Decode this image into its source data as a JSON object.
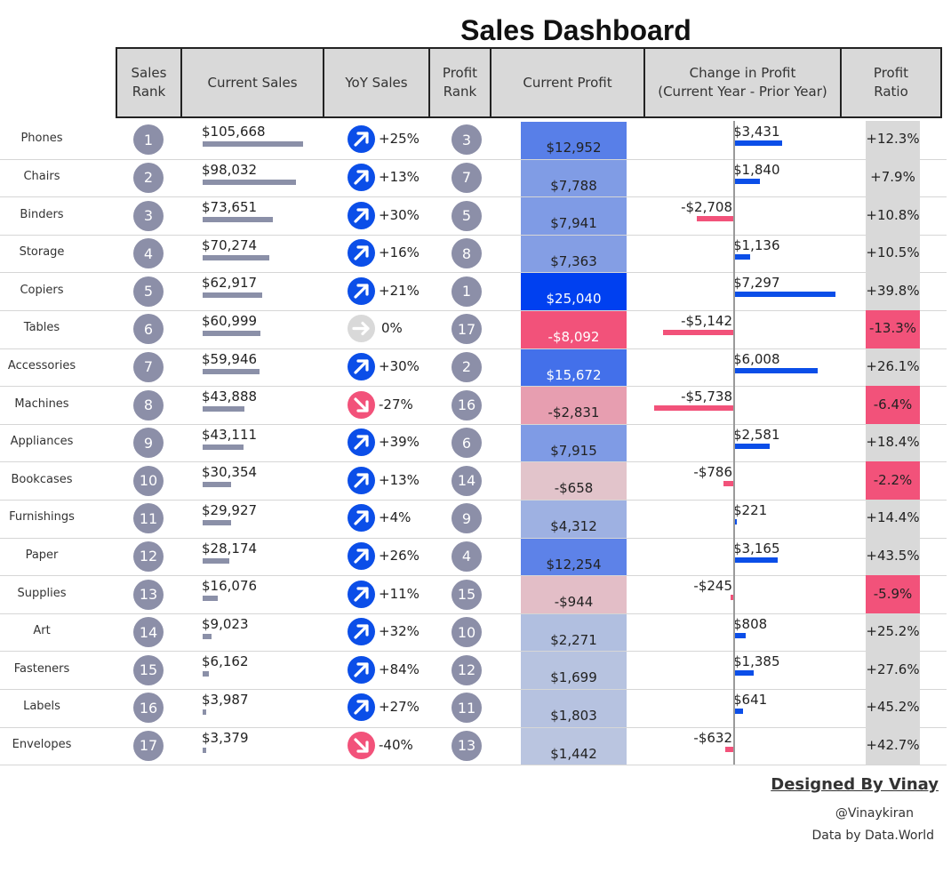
{
  "header": {
    "title": "Sales Dashboard",
    "columns": [
      {
        "label": "Sales\nRank"
      },
      {
        "label": "Current Sales"
      },
      {
        "label": "YoY Sales"
      },
      {
        "label": "Profit\nRank"
      },
      {
        "label": "Current Profit"
      },
      {
        "label": "Change in Profit\n(Current Year - Prior Year)"
      },
      {
        "label": "Profit\nRatio"
      }
    ]
  },
  "colors": {
    "positive_bar": "#0b4ee8",
    "negative_bar": "#f2527a",
    "rank_circle": "#8c8fa8",
    "sales_bar": "#8b90a8",
    "header_bg": "#d9d9d9",
    "ratio_bg": "#d9d9d9",
    "ratio_negative_bg": "#f2527a"
  },
  "chart_data": {
    "type": "table",
    "rows": [
      {
        "category": "Phones",
        "sales_rank": 1,
        "current_sales": 105668,
        "current_sales_label": "$105,668",
        "yoy_pct": 25,
        "yoy_label": "+25%",
        "profit_rank": 3,
        "current_profit": 12952,
        "current_profit_label": "$12,952",
        "change_in_profit": 3431,
        "change_in_profit_label": "$3,431",
        "profit_ratio_pct": 12.3,
        "profit_ratio_label": "+12.3%"
      },
      {
        "category": "Chairs",
        "sales_rank": 2,
        "current_sales": 98032,
        "current_sales_label": "$98,032",
        "yoy_pct": 13,
        "yoy_label": "+13%",
        "profit_rank": 7,
        "current_profit": 7788,
        "current_profit_label": "$7,788",
        "change_in_profit": 1840,
        "change_in_profit_label": "$1,840",
        "profit_ratio_pct": 7.9,
        "profit_ratio_label": "+7.9%"
      },
      {
        "category": "Binders",
        "sales_rank": 3,
        "current_sales": 73651,
        "current_sales_label": "$73,651",
        "yoy_pct": 30,
        "yoy_label": "+30%",
        "profit_rank": 5,
        "current_profit": 7941,
        "current_profit_label": "$7,941",
        "change_in_profit": -2708,
        "change_in_profit_label": "-$2,708",
        "profit_ratio_pct": 10.8,
        "profit_ratio_label": "+10.8%"
      },
      {
        "category": "Storage",
        "sales_rank": 4,
        "current_sales": 70274,
        "current_sales_label": "$70,274",
        "yoy_pct": 16,
        "yoy_label": "+16%",
        "profit_rank": 8,
        "current_profit": 7363,
        "current_profit_label": "$7,363",
        "change_in_profit": 1136,
        "change_in_profit_label": "$1,136",
        "profit_ratio_pct": 10.5,
        "profit_ratio_label": "+10.5%"
      },
      {
        "category": "Copiers",
        "sales_rank": 5,
        "current_sales": 62917,
        "current_sales_label": "$62,917",
        "yoy_pct": 21,
        "yoy_label": "+21%",
        "profit_rank": 1,
        "current_profit": 25040,
        "current_profit_label": "$25,040",
        "change_in_profit": 7297,
        "change_in_profit_label": "$7,297",
        "profit_ratio_pct": 39.8,
        "profit_ratio_label": "+39.8%"
      },
      {
        "category": "Tables",
        "sales_rank": 6,
        "current_sales": 60999,
        "current_sales_label": "$60,999",
        "yoy_pct": 0,
        "yoy_label": "0%",
        "profit_rank": 17,
        "current_profit": -8092,
        "current_profit_label": "-$8,092",
        "change_in_profit": -5142,
        "change_in_profit_label": "-$5,142",
        "profit_ratio_pct": -13.3,
        "profit_ratio_label": "-13.3%"
      },
      {
        "category": "Accessories",
        "sales_rank": 7,
        "current_sales": 59946,
        "current_sales_label": "$59,946",
        "yoy_pct": 30,
        "yoy_label": "+30%",
        "profit_rank": 2,
        "current_profit": 15672,
        "current_profit_label": "$15,672",
        "change_in_profit": 6008,
        "change_in_profit_label": "$6,008",
        "profit_ratio_pct": 26.1,
        "profit_ratio_label": "+26.1%"
      },
      {
        "category": "Machines",
        "sales_rank": 8,
        "current_sales": 43888,
        "current_sales_label": "$43,888",
        "yoy_pct": -27,
        "yoy_label": "-27%",
        "profit_rank": 16,
        "current_profit": -2831,
        "current_profit_label": "-$2,831",
        "change_in_profit": -5738,
        "change_in_profit_label": "-$5,738",
        "profit_ratio_pct": -6.4,
        "profit_ratio_label": "-6.4%"
      },
      {
        "category": "Appliances",
        "sales_rank": 9,
        "current_sales": 43111,
        "current_sales_label": "$43,111",
        "yoy_pct": 39,
        "yoy_label": "+39%",
        "profit_rank": 6,
        "current_profit": 7915,
        "current_profit_label": "$7,915",
        "change_in_profit": 2581,
        "change_in_profit_label": "$2,581",
        "profit_ratio_pct": 18.4,
        "profit_ratio_label": "+18.4%"
      },
      {
        "category": "Bookcases",
        "sales_rank": 10,
        "current_sales": 30354,
        "current_sales_label": "$30,354",
        "yoy_pct": 13,
        "yoy_label": "+13%",
        "profit_rank": 14,
        "current_profit": -658,
        "current_profit_label": "-$658",
        "change_in_profit": -786,
        "change_in_profit_label": "-$786",
        "profit_ratio_pct": -2.2,
        "profit_ratio_label": "-2.2%"
      },
      {
        "category": "Furnishings",
        "sales_rank": 11,
        "current_sales": 29927,
        "current_sales_label": "$29,927",
        "yoy_pct": 4,
        "yoy_label": "+4%",
        "profit_rank": 9,
        "current_profit": 4312,
        "current_profit_label": "$4,312",
        "change_in_profit": 221,
        "change_in_profit_label": "$221",
        "profit_ratio_pct": 14.4,
        "profit_ratio_label": "+14.4%"
      },
      {
        "category": "Paper",
        "sales_rank": 12,
        "current_sales": 28174,
        "current_sales_label": "$28,174",
        "yoy_pct": 26,
        "yoy_label": "+26%",
        "profit_rank": 4,
        "current_profit": 12254,
        "current_profit_label": "$12,254",
        "change_in_profit": 3165,
        "change_in_profit_label": "$3,165",
        "profit_ratio_pct": 43.5,
        "profit_ratio_label": "+43.5%"
      },
      {
        "category": "Supplies",
        "sales_rank": 13,
        "current_sales": 16076,
        "current_sales_label": "$16,076",
        "yoy_pct": 11,
        "yoy_label": "+11%",
        "profit_rank": 15,
        "current_profit": -944,
        "current_profit_label": "-$944",
        "change_in_profit": -245,
        "change_in_profit_label": "-$245",
        "profit_ratio_pct": -5.9,
        "profit_ratio_label": "-5.9%"
      },
      {
        "category": "Art",
        "sales_rank": 14,
        "current_sales": 9023,
        "current_sales_label": "$9,023",
        "yoy_pct": 32,
        "yoy_label": "+32%",
        "profit_rank": 10,
        "current_profit": 2271,
        "current_profit_label": "$2,271",
        "change_in_profit": 808,
        "change_in_profit_label": "$808",
        "profit_ratio_pct": 25.2,
        "profit_ratio_label": "+25.2%"
      },
      {
        "category": "Fasteners",
        "sales_rank": 15,
        "current_sales": 6162,
        "current_sales_label": "$6,162",
        "yoy_pct": 84,
        "yoy_label": "+84%",
        "profit_rank": 12,
        "current_profit": 1699,
        "current_profit_label": "$1,699",
        "change_in_profit": 1385,
        "change_in_profit_label": "$1,385",
        "profit_ratio_pct": 27.6,
        "profit_ratio_label": "+27.6%"
      },
      {
        "category": "Labels",
        "sales_rank": 16,
        "current_sales": 3987,
        "current_sales_label": "$3,987",
        "yoy_pct": 27,
        "yoy_label": "+27%",
        "profit_rank": 11,
        "current_profit": 1803,
        "current_profit_label": "$1,803",
        "change_in_profit": 641,
        "change_in_profit_label": "$641",
        "profit_ratio_pct": 45.2,
        "profit_ratio_label": "+45.2%"
      },
      {
        "category": "Envelopes",
        "sales_rank": 17,
        "current_sales": 3379,
        "current_sales_label": "$3,379",
        "yoy_pct": -40,
        "yoy_label": "-40%",
        "profit_rank": 13,
        "current_profit": 1442,
        "current_profit_label": "$1,442",
        "change_in_profit": -632,
        "change_in_profit_label": "-$632",
        "profit_ratio_pct": 42.7,
        "profit_ratio_label": "+42.7%"
      }
    ]
  },
  "footer": {
    "designed_by": "Designed By Vinay",
    "handle": "@Vinaykiran",
    "data_source": "Data by Data.World"
  }
}
